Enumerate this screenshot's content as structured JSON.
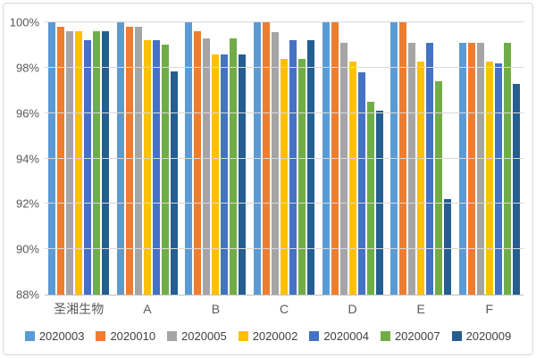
{
  "chart_data": {
    "type": "bar",
    "title": "",
    "categories": [
      "圣湘生物",
      "A",
      "B",
      "C",
      "D",
      "E",
      "F"
    ],
    "series": [
      {
        "name": "2020003",
        "color": "#5B9BD5",
        "values": [
          100,
          100,
          100,
          100,
          100,
          100,
          99.1
        ]
      },
      {
        "name": "2020010",
        "color": "#ED7D31",
        "values": [
          99.8,
          99.8,
          99.6,
          100,
          100,
          100,
          99.1
        ]
      },
      {
        "name": "2020005",
        "color": "#A5A5A5",
        "values": [
          99.6,
          99.8,
          99.3,
          99.55,
          99.1,
          99.1,
          99.1
        ]
      },
      {
        "name": "2020002",
        "color": "#FFC000",
        "values": [
          99.6,
          99.2,
          98.6,
          98.4,
          98.25,
          98.25,
          98.25
        ]
      },
      {
        "name": "2020004",
        "color": "#4472C4",
        "values": [
          99.2,
          99.2,
          98.6,
          99.2,
          97.8,
          99.1,
          98.2
        ]
      },
      {
        "name": "2020007",
        "color": "#70AD47",
        "values": [
          99.6,
          99.0,
          99.3,
          98.4,
          96.5,
          97.4,
          99.1
        ]
      },
      {
        "name": "2020009",
        "color": "#255E91",
        "values": [
          99.6,
          97.85,
          98.6,
          99.2,
          96.1,
          92.2,
          97.3
        ]
      }
    ],
    "ylim": [
      88,
      100
    ],
    "yticks": [
      {
        "value": 100,
        "label": "100%"
      },
      {
        "value": 98,
        "label": "98%"
      },
      {
        "value": 96,
        "label": "96%"
      },
      {
        "value": 94,
        "label": "94%"
      },
      {
        "value": 92,
        "label": "92%"
      },
      {
        "value": 90,
        "label": "90%"
      },
      {
        "value": 88,
        "label": "88%"
      }
    ],
    "grid": true,
    "legend_position": "bottom",
    "colors": {
      "gridline": "#d9d9d9",
      "axis_line": "#bfbfbf",
      "tick_text": "#595959",
      "legend_text": "#404040"
    }
  }
}
